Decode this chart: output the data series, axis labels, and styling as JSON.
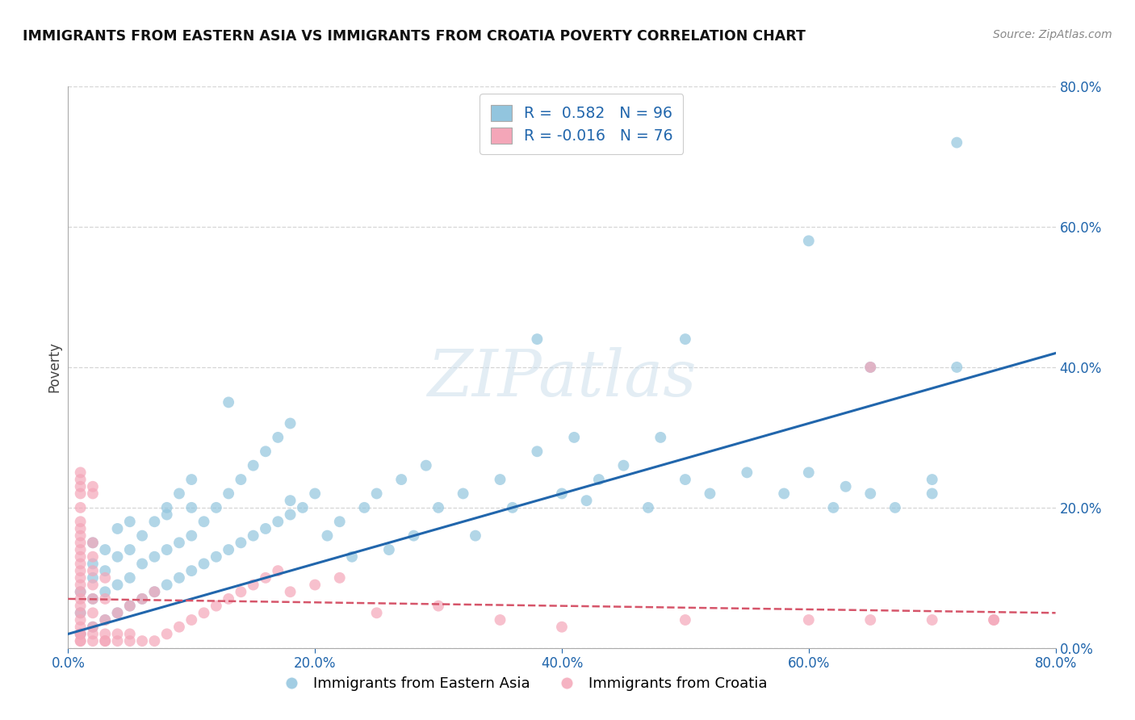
{
  "title": "IMMIGRANTS FROM EASTERN ASIA VS IMMIGRANTS FROM CROATIA POVERTY CORRELATION CHART",
  "source": "Source: ZipAtlas.com",
  "watermark": "ZIPatlas",
  "color_blue": "#92c5de",
  "color_pink": "#f4a6b8",
  "line_blue": "#2166ac",
  "line_pink": "#d6556a",
  "R_blue": 0.582,
  "N_blue": 96,
  "R_pink": -0.016,
  "N_pink": 76,
  "xlim": [
    0.0,
    0.8
  ],
  "ylim": [
    0.0,
    0.8
  ],
  "background": "#ffffff",
  "grid_color": "#cccccc",
  "blue_x": [
    0.01,
    0.01,
    0.01,
    0.02,
    0.02,
    0.02,
    0.02,
    0.02,
    0.03,
    0.03,
    0.03,
    0.03,
    0.04,
    0.04,
    0.04,
    0.04,
    0.05,
    0.05,
    0.05,
    0.05,
    0.06,
    0.06,
    0.06,
    0.07,
    0.07,
    0.07,
    0.08,
    0.08,
    0.08,
    0.09,
    0.09,
    0.09,
    0.1,
    0.1,
    0.1,
    0.11,
    0.11,
    0.12,
    0.12,
    0.13,
    0.13,
    0.14,
    0.14,
    0.15,
    0.15,
    0.16,
    0.16,
    0.17,
    0.17,
    0.18,
    0.18,
    0.19,
    0.2,
    0.21,
    0.22,
    0.23,
    0.24,
    0.25,
    0.26,
    0.27,
    0.28,
    0.29,
    0.3,
    0.32,
    0.33,
    0.35,
    0.36,
    0.38,
    0.4,
    0.41,
    0.43,
    0.45,
    0.47,
    0.48,
    0.5,
    0.52,
    0.55,
    0.58,
    0.6,
    0.62,
    0.63,
    0.65,
    0.67,
    0.7,
    0.72,
    0.72,
    0.13,
    0.18,
    0.38,
    0.42,
    0.5,
    0.6,
    0.65,
    0.7,
    0.1,
    0.08
  ],
  "blue_y": [
    0.02,
    0.05,
    0.08,
    0.03,
    0.07,
    0.1,
    0.12,
    0.15,
    0.04,
    0.08,
    0.11,
    0.14,
    0.05,
    0.09,
    0.13,
    0.17,
    0.06,
    0.1,
    0.14,
    0.18,
    0.07,
    0.12,
    0.16,
    0.08,
    0.13,
    0.18,
    0.09,
    0.14,
    0.2,
    0.1,
    0.15,
    0.22,
    0.11,
    0.16,
    0.24,
    0.12,
    0.18,
    0.13,
    0.2,
    0.14,
    0.22,
    0.15,
    0.24,
    0.16,
    0.26,
    0.17,
    0.28,
    0.18,
    0.3,
    0.19,
    0.32,
    0.2,
    0.22,
    0.16,
    0.18,
    0.13,
    0.2,
    0.22,
    0.14,
    0.24,
    0.16,
    0.26,
    0.2,
    0.22,
    0.16,
    0.24,
    0.2,
    0.28,
    0.22,
    0.3,
    0.24,
    0.26,
    0.2,
    0.3,
    0.24,
    0.22,
    0.25,
    0.22,
    0.25,
    0.2,
    0.23,
    0.22,
    0.2,
    0.24,
    0.72,
    0.4,
    0.35,
    0.21,
    0.44,
    0.21,
    0.44,
    0.58,
    0.4,
    0.22,
    0.2,
    0.19
  ],
  "pink_x": [
    0.01,
    0.01,
    0.01,
    0.01,
    0.01,
    0.01,
    0.01,
    0.01,
    0.01,
    0.01,
    0.01,
    0.01,
    0.01,
    0.01,
    0.01,
    0.01,
    0.01,
    0.01,
    0.01,
    0.01,
    0.01,
    0.01,
    0.01,
    0.02,
    0.02,
    0.02,
    0.02,
    0.02,
    0.02,
    0.02,
    0.02,
    0.02,
    0.03,
    0.03,
    0.03,
    0.03,
    0.03,
    0.04,
    0.04,
    0.04,
    0.05,
    0.05,
    0.05,
    0.06,
    0.06,
    0.07,
    0.07,
    0.08,
    0.09,
    0.1,
    0.11,
    0.12,
    0.13,
    0.14,
    0.15,
    0.16,
    0.17,
    0.18,
    0.2,
    0.22,
    0.25,
    0.3,
    0.35,
    0.4,
    0.5,
    0.6,
    0.65,
    0.7,
    0.75,
    0.01,
    0.01,
    0.02,
    0.02,
    0.03,
    0.65,
    0.75
  ],
  "pink_y": [
    0.01,
    0.02,
    0.03,
    0.04,
    0.05,
    0.06,
    0.07,
    0.08,
    0.09,
    0.1,
    0.11,
    0.12,
    0.13,
    0.14,
    0.15,
    0.16,
    0.17,
    0.18,
    0.2,
    0.22,
    0.24,
    0.01,
    0.02,
    0.01,
    0.03,
    0.05,
    0.07,
    0.09,
    0.11,
    0.13,
    0.15,
    0.02,
    0.01,
    0.04,
    0.07,
    0.1,
    0.02,
    0.01,
    0.05,
    0.02,
    0.01,
    0.06,
    0.02,
    0.01,
    0.07,
    0.01,
    0.08,
    0.02,
    0.03,
    0.04,
    0.05,
    0.06,
    0.07,
    0.08,
    0.09,
    0.1,
    0.11,
    0.08,
    0.09,
    0.1,
    0.05,
    0.06,
    0.04,
    0.03,
    0.04,
    0.04,
    0.04,
    0.04,
    0.04,
    0.23,
    0.25,
    0.22,
    0.23,
    0.01,
    0.4,
    0.04
  ]
}
